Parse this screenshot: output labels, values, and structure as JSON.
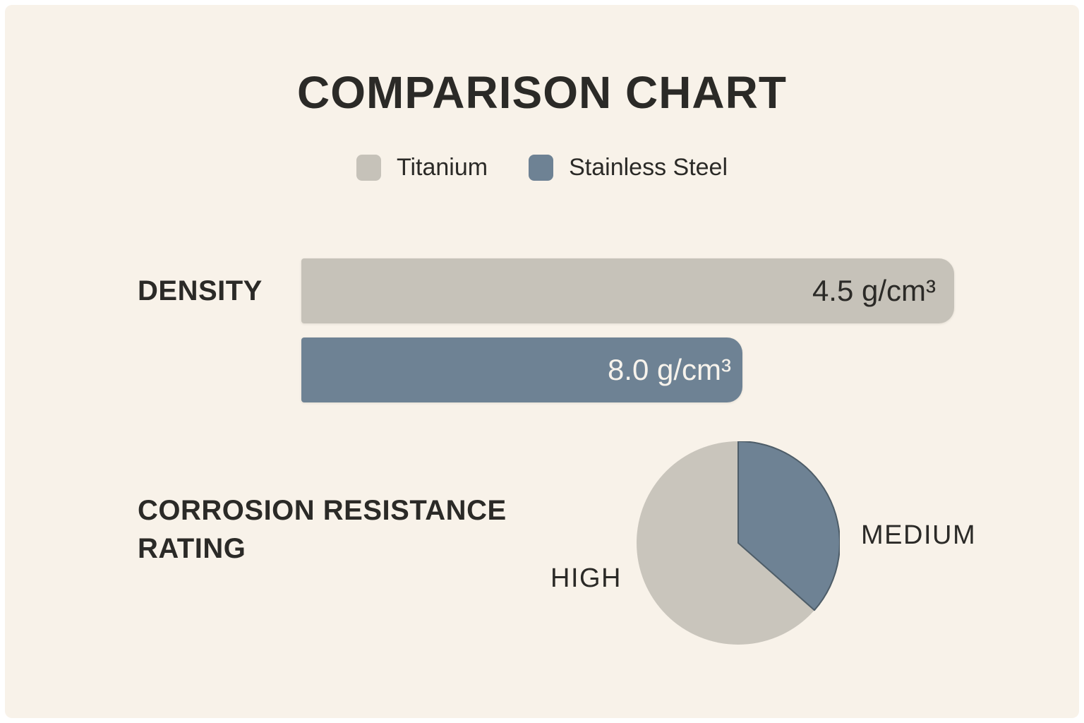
{
  "title": "COMPARISON CHART",
  "colors": {
    "background": "#f8f2e9",
    "frame": "#ffffff",
    "titanium": "#c6c2b9",
    "stainless_steel": "#6e8294",
    "text_dark": "#2b2a27",
    "text_on_steel": "#f7f3ec",
    "slice_outline": "#4e5d68"
  },
  "legend": {
    "items": [
      {
        "label": "Titanium",
        "color": "#c6c2b9"
      },
      {
        "label": "Stainless Steel",
        "color": "#6e8294"
      }
    ]
  },
  "density": {
    "label": "DENSITY",
    "bars": [
      {
        "material": "Titanium",
        "value": 4.5,
        "unit": "g/cm³",
        "value_label": "4.5 g/cm³",
        "color": "#c6c2b9"
      },
      {
        "material": "Stainless Steel",
        "value": 8.0,
        "unit": "g/cm³",
        "value_label": "8.0 g/cm³",
        "color": "#6e8294"
      }
    ]
  },
  "corrosion": {
    "label": "CORROSION RESISTANCE RATING",
    "slices": [
      {
        "material": "Titanium",
        "label": "HIGH",
        "percent": 63.5,
        "color": "#c6c2b9"
      },
      {
        "material": "Stainless Steel",
        "label": "MEDIUM",
        "percent": 36.5,
        "color": "#6e8294"
      }
    ]
  },
  "chart_data": [
    {
      "type": "bar",
      "orientation": "horizontal",
      "title": "DENSITY",
      "categories": [
        "Titanium",
        "Stainless Steel"
      ],
      "values": [
        4.5,
        8.0
      ],
      "unit": "g/cm³",
      "value_labels": [
        "4.5 g/cm³",
        "8.0 g/cm³"
      ],
      "colors": [
        "#c6c2b9",
        "#6e8294"
      ],
      "legend": [
        "Titanium",
        "Stainless Steel"
      ],
      "legend_position": "top",
      "grid": false,
      "note": "bar lengths are stylized: Titanium bar drawn longer than Stainless Steel despite lower value"
    },
    {
      "type": "pie",
      "title": "CORROSION RESISTANCE RATING",
      "categories": [
        "Titanium",
        "Stainless Steel"
      ],
      "labels": [
        "HIGH",
        "MEDIUM"
      ],
      "values": [
        63.5,
        36.5
      ],
      "unit": "percent of circle (estimated)",
      "colors": [
        "#c9c5bc",
        "#6e8294"
      ],
      "start_angle_deg": 0,
      "medium_slice_sweep_deg": 131
    }
  ]
}
